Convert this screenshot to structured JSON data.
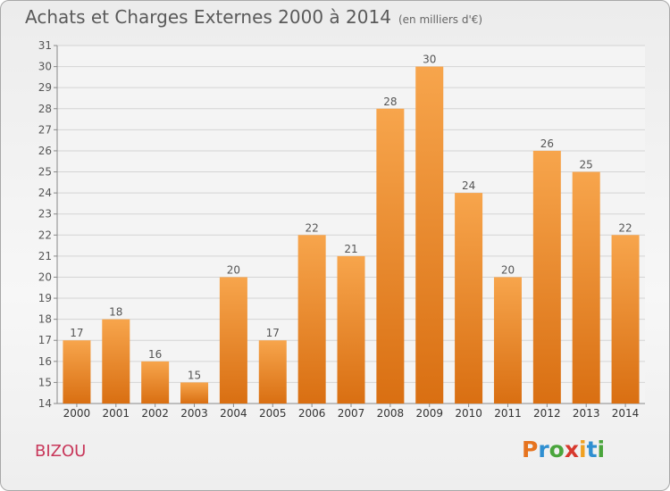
{
  "header": {
    "title": "Achats et Charges Externes 2000 à 2014",
    "subtitle": "(en milliers d'€)"
  },
  "footer": {
    "place": "BIZOU",
    "logo_text": "Proxiti"
  },
  "colors": {
    "bar_light": "#f7a54c",
    "bar_dark": "#d96f12",
    "grid": "#d4d4d4",
    "text": "#555555",
    "place": "#c8375a",
    "logo_letters": [
      "#e6731e",
      "#2f8fd1",
      "#4aa53c",
      "#d7392e",
      "#f0a020",
      "#2f8fd1",
      "#4aa53c"
    ]
  },
  "chart_data": {
    "type": "bar",
    "title": "Achats et Charges Externes 2000 à 2014",
    "subtitle": "(en milliers d'€)",
    "xlabel": "",
    "ylabel": "",
    "categories": [
      "2000",
      "2001",
      "2002",
      "2003",
      "2004",
      "2005",
      "2006",
      "2007",
      "2008",
      "2009",
      "2010",
      "2011",
      "2012",
      "2013",
      "2014"
    ],
    "values": [
      17,
      18,
      16,
      15,
      20,
      17,
      22,
      21,
      28,
      30,
      24,
      20,
      26,
      25,
      22
    ],
    "ylim": [
      14,
      31
    ],
    "yticks": [
      14,
      15,
      16,
      17,
      18,
      19,
      20,
      21,
      22,
      23,
      24,
      25,
      26,
      27,
      28,
      29,
      30,
      31
    ],
    "grid": true,
    "data_labels": true
  }
}
